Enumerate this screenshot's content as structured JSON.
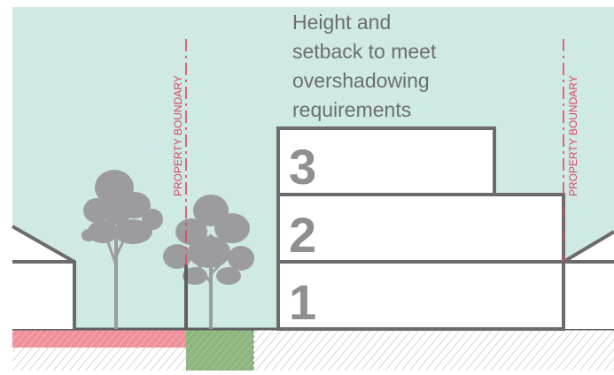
{
  "caption": {
    "lines": [
      "Height and",
      "setback to meet",
      "overshadowing",
      "requirements"
    ]
  },
  "boundary_labels": {
    "left": "PROPERTY BOUNDARY",
    "right": "PROPERTY BOUNDARY"
  },
  "storeys": {
    "first": "1",
    "second": "2",
    "third": "3"
  },
  "colors": {
    "sky": "#cfe9e5",
    "building_outline": "#6b6b6d",
    "storey_number": "#8f8f91",
    "tree": "#9c9c9e",
    "boundary_line": "#d9475f",
    "caption_text": "#6d6d6f",
    "ground_hatch": "#c9c6bd",
    "pink_strip": "#ef8f9a",
    "green_strip": "#8fb57e"
  }
}
